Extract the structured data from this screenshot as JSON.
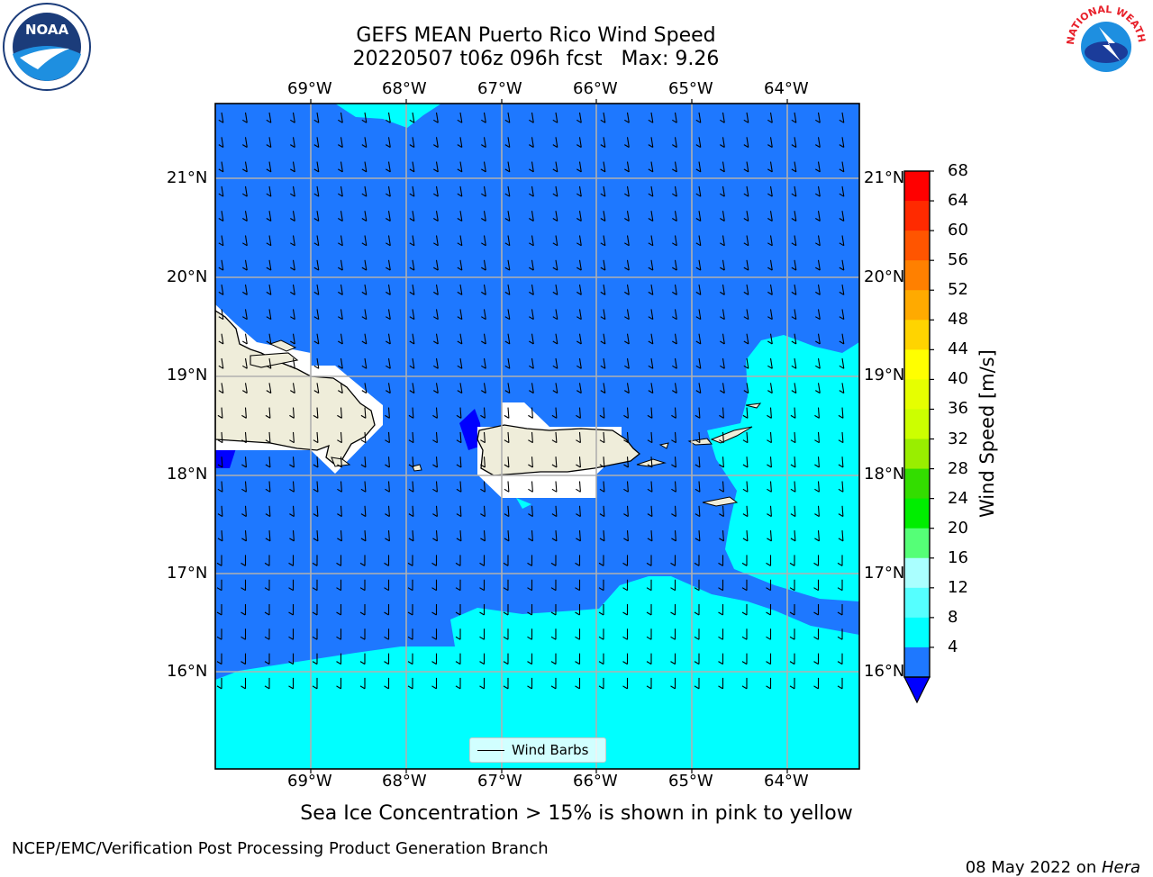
{
  "title": {
    "line1": "GEFS MEAN Puerto Rico Wind Speed",
    "line2": "20220507 t06z 096h fcst   Max: 9.26"
  },
  "lon_labels": [
    "69°W",
    "68°W",
    "67°W",
    "66°W",
    "65°W",
    "64°W"
  ],
  "lat_labels": [
    "21°N",
    "20°N",
    "19°N",
    "18°N",
    "17°N",
    "16°N"
  ],
  "legend": {
    "label": "Wind Barbs"
  },
  "colorbar": {
    "title": "Wind Speed [m/s]",
    "ticks": [
      "68",
      "64",
      "60",
      "56",
      "52",
      "48",
      "44",
      "40",
      "36",
      "32",
      "28",
      "24",
      "20",
      "16",
      "12",
      "8",
      "4"
    ],
    "colors": [
      "#ff0000",
      "#ff2a00",
      "#ff5500",
      "#ff8000",
      "#ffaa00",
      "#ffd400",
      "#ffff00",
      "#e6ff00",
      "#ccff00",
      "#99ee00",
      "#33dd00",
      "#00ee00",
      "#55ff77",
      "#aaffff",
      "#55ffff",
      "#00ffff",
      "#1e78ff"
    ],
    "extend_color": "#0000ff"
  },
  "subtitle": "Sea Ice Concentration > 15% is shown in pink to yellow",
  "footer": {
    "left": "NCEP/EMC/Verification Post Processing Product Generation Branch",
    "right_date": "08 May 2022 on ",
    "right_machine": "Hera"
  },
  "logos": {
    "noaa_text": "NOAA",
    "nws_text": "NATIONAL WEATHER SERVICE"
  },
  "map_colors": {
    "ocean_4_8": "#1e78ff",
    "ocean_8_12": "#00ffff",
    "below_4": "#0000ff",
    "land": "#efedda",
    "grid": "#b0b0b0"
  }
}
